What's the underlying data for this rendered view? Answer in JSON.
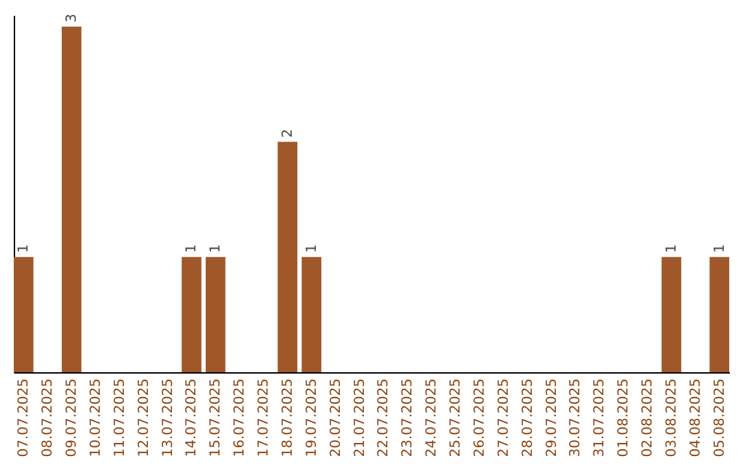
{
  "chart_data": {
    "type": "bar",
    "categories": [
      "07.07.2025",
      "08.07.2025",
      "09.07.2025",
      "10.07.2025",
      "11.07.2025",
      "12.07.2025",
      "13.07.2025",
      "14.07.2025",
      "15.07.2025",
      "16.07.2025",
      "17.07.2025",
      "18.07.2025",
      "19.07.2025",
      "20.07.2025",
      "21.07.2025",
      "22.07.2025",
      "23.07.2025",
      "24.07.2025",
      "25.07.2025",
      "26.07.2025",
      "27.07.2025",
      "28.07.2025",
      "29.07.2025",
      "30.07.2025",
      "31.07.2025",
      "01.08.2025",
      "02.08.2025",
      "03.08.2025",
      "04.08.2025",
      "05.08.2025"
    ],
    "values": [
      1,
      0,
      3,
      0,
      0,
      0,
      0,
      1,
      1,
      0,
      0,
      2,
      1,
      0,
      0,
      0,
      0,
      0,
      0,
      0,
      0,
      0,
      0,
      0,
      0,
      0,
      0,
      1,
      0,
      1
    ],
    "value_labels": [
      "1",
      null,
      "3",
      null,
      null,
      null,
      null,
      "1",
      "1",
      null,
      null,
      "2",
      "1",
      null,
      null,
      null,
      null,
      null,
      null,
      null,
      null,
      null,
      null,
      null,
      null,
      null,
      null,
      "1",
      null,
      "1"
    ],
    "color": "#a0582a",
    "ylim": [
      0,
      3.1
    ],
    "tick_labels": "x",
    "grid": false
  }
}
